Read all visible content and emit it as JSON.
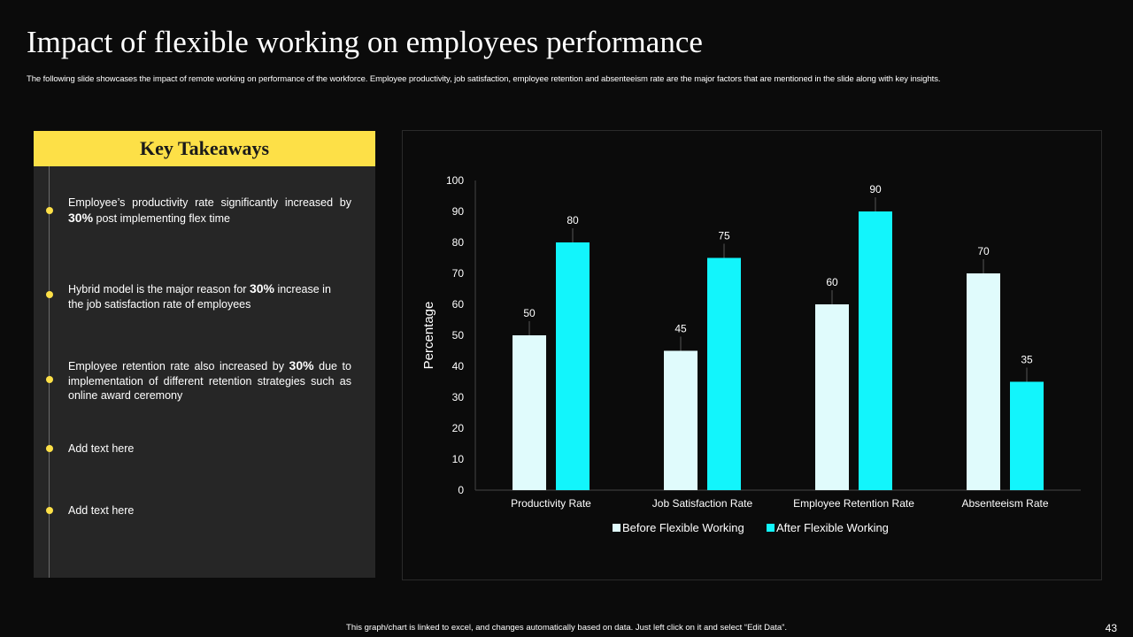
{
  "slide": {
    "title": "Impact of flexible working on employees performance",
    "subtitle": "The following slide showcases the impact of remote working on performance of the workforce. Employee productivity, job satisfaction, employee retention and absenteeism rate are the major  factors that are mentioned in the slide along  with key insights.",
    "footer": "This graph/chart is linked to excel, and changes automatically based on data. Just left click on it and select “Edit Data”.",
    "page_number": "43"
  },
  "takeaways": {
    "heading": "Key Takeaways",
    "items": [
      {
        "pre": "Employee’s productivity rate significantly increased by ",
        "bold": "30%",
        "post": " post implementing flex time"
      },
      {
        "pre": "Hybrid model is the major reason for ",
        "bold": "30%",
        "post": " increase in the job satisfaction rate of employees"
      },
      {
        "pre": "Employee retention rate also increased by ",
        "bold": "30%",
        "post": " due to implementation of different  retention strategies such as online award ceremony"
      },
      {
        "pre": "Add text here",
        "bold": "",
        "post": ""
      },
      {
        "pre": "Add text here",
        "bold": "",
        "post": ""
      }
    ]
  },
  "colors": {
    "accent": "#fde047",
    "before_bar": "#e0fbfc",
    "after_bar": "#12f5fc"
  },
  "chart_data": {
    "type": "bar",
    "title": "",
    "xlabel": "",
    "ylabel": "Percentage",
    "ylim": [
      0,
      100
    ],
    "yticks": [
      0,
      10,
      20,
      30,
      40,
      50,
      60,
      70,
      80,
      90,
      100
    ],
    "categories": [
      "Productivity Rate",
      "Job Satisfaction Rate",
      "Employee Retention Rate",
      "Absenteeism Rate"
    ],
    "series": [
      {
        "name": "Before Flexible Working",
        "values": [
          50,
          45,
          60,
          70
        ]
      },
      {
        "name": "After Flexible Working",
        "values": [
          80,
          75,
          90,
          35
        ]
      }
    ],
    "legend": "bottom",
    "grid": false
  }
}
